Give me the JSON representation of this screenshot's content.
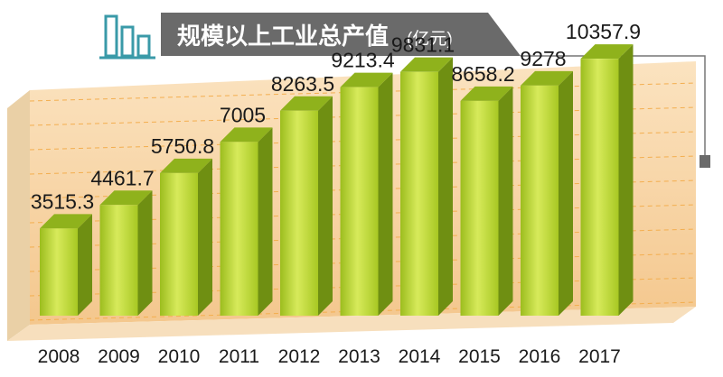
{
  "title": "规模以上工业总产值",
  "unit": "(亿元)",
  "colors": {
    "bar_front": "#b9d72a",
    "bar_side": "#6f8f12",
    "bar_top": "#8fb21c",
    "plot_bg": "#f6cf9b",
    "title_bg": "#6a6a6a",
    "icon": "#3a9aa8"
  },
  "chart_data": {
    "type": "bar",
    "title": "规模以上工业总产值",
    "unit": "(亿元)",
    "categories": [
      "2008",
      "2009",
      "2010",
      "2011",
      "2012",
      "2013",
      "2014",
      "2015",
      "2016",
      "2017"
    ],
    "values": [
      3515.3,
      4461.7,
      5750.8,
      7005,
      8263.5,
      9213.4,
      9831.1,
      8658.2,
      9278,
      10357.9
    ],
    "value_labels": [
      "3515.3",
      "4461.7",
      "5750.8",
      "7005",
      "8263.5",
      "9213.4",
      "9831.1",
      "8658.2",
      "9278",
      "10357.9"
    ],
    "ylim": [
      0,
      12000
    ],
    "grid": true,
    "legend": "none"
  }
}
